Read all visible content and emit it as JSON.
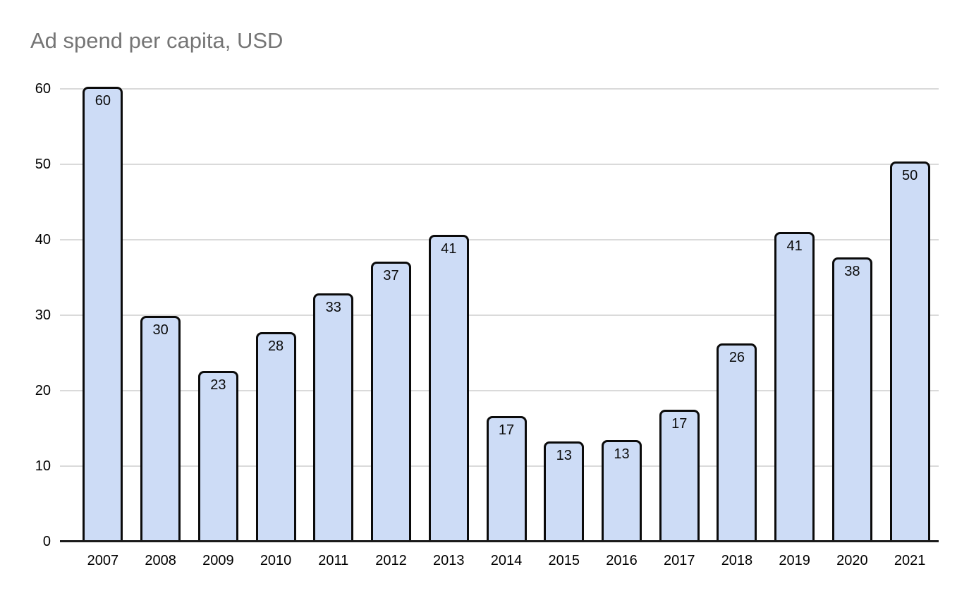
{
  "chart_data": {
    "type": "bar",
    "title": "Ad spend per capita, USD",
    "categories": [
      "2007",
      "2008",
      "2009",
      "2010",
      "2011",
      "2012",
      "2013",
      "2014",
      "2015",
      "2016",
      "2017",
      "2018",
      "2019",
      "2020",
      "2021"
    ],
    "values": [
      60,
      30,
      23,
      28,
      33,
      37,
      41,
      17,
      13,
      13,
      17,
      26,
      41,
      38,
      50
    ],
    "values_precise": [
      60.3,
      29.9,
      22.6,
      27.8,
      32.9,
      37.1,
      40.7,
      16.6,
      13.3,
      13.5,
      17.5,
      26.3,
      41.0,
      37.7,
      50.4
    ],
    "data_labels": [
      "60",
      "30",
      "23",
      "28",
      "33",
      "37",
      "41",
      "17",
      "13",
      "13",
      "17",
      "26",
      "41",
      "38",
      "50"
    ],
    "xlabel": "",
    "ylabel": "",
    "ylim": [
      0,
      60
    ],
    "yticks": [
      0,
      10,
      20,
      30,
      40,
      50,
      60
    ],
    "grid": true,
    "legend": false,
    "colors": {
      "bar_fill": "#cddcf6",
      "bar_border": "#0b0b0b",
      "gridline": "#dadada",
      "axis_line": "#1a1a1a",
      "title_text": "#757575",
      "tick_text": "#000000",
      "background": "#ffffff"
    }
  }
}
